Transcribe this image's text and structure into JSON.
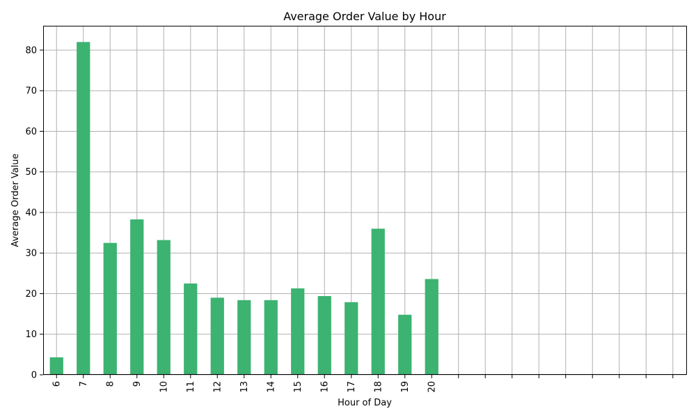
{
  "chart_data": {
    "type": "bar",
    "title": "Average Order Value by Hour",
    "xlabel": "Hour of Day",
    "ylabel": "Average Order Value",
    "categories": [
      "6",
      "7",
      "8",
      "9",
      "10",
      "11",
      "12",
      "13",
      "14",
      "15",
      "16",
      "17",
      "18",
      "19",
      "20",
      "",
      "",
      "",
      "",
      "",
      "",
      "",
      "",
      ""
    ],
    "values": [
      4.3,
      82.0,
      32.5,
      38.3,
      33.2,
      22.5,
      19.0,
      18.4,
      18.4,
      21.3,
      19.4,
      17.9,
      36.0,
      14.8,
      23.6,
      null,
      null,
      null,
      null,
      null,
      null,
      null,
      null,
      null
    ],
    "ylim": [
      0,
      86
    ],
    "yticks": [
      0,
      10,
      20,
      30,
      40,
      50,
      60,
      70,
      80
    ],
    "grid": true,
    "bar_color": "#3cb371",
    "legend": "none"
  }
}
